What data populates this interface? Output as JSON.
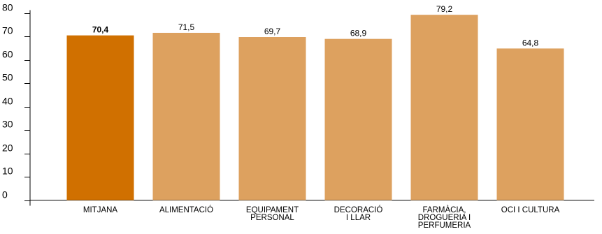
{
  "chart_data": {
    "type": "bar",
    "categories": [
      [
        "MITJANA"
      ],
      [
        "ALIMENTACIÓ"
      ],
      [
        "EQUIPAMENT",
        "PERSONAL"
      ],
      [
        "DECORACIÓ",
        "I LLAR"
      ],
      [
        "FARMÀCIA,",
        "DROGUERIA I",
        "PERFUMERIA"
      ],
      [
        "OCI I CULTURA"
      ]
    ],
    "values": [
      70.4,
      71.5,
      69.7,
      68.9,
      79.2,
      64.8
    ],
    "value_labels": [
      "70,4",
      "71,5",
      "69,7",
      "68,9",
      "79,2",
      "64,8"
    ],
    "highlight_index": 0,
    "colors": {
      "highlight": "#D07000",
      "bar": "#DDA15F",
      "axis": "#000000"
    },
    "ylim": [
      0,
      80
    ],
    "yticks": [
      "0",
      "10",
      "20",
      "30",
      "40",
      "50",
      "60",
      "70",
      "80"
    ],
    "title": "",
    "xlabel": "",
    "ylabel": "",
    "grid": false,
    "legend": "none"
  }
}
